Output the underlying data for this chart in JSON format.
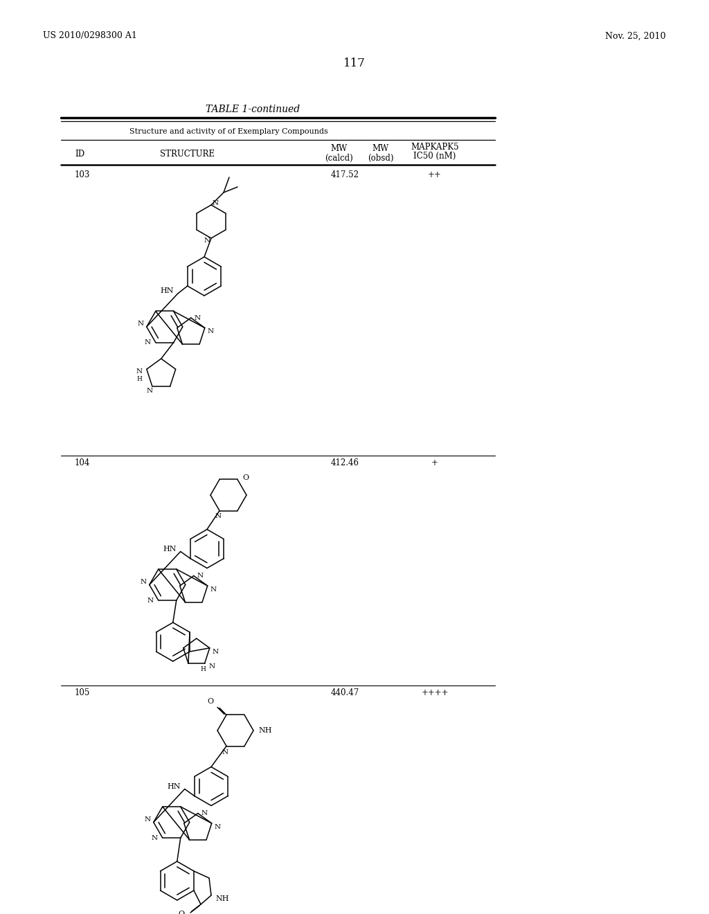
{
  "background_color": "#ffffff",
  "page_number": "117",
  "patent_left": "US 2010/0298300 A1",
  "patent_right": "Nov. 25, 2010",
  "table_title": "TABLE 1-continued",
  "table_subtitle": "Structure and activity of of Exemplary Compounds",
  "rows": [
    {
      "id": "103",
      "mw_calcd": "417.52",
      "mw_obsd": "",
      "activity": "++"
    },
    {
      "id": "104",
      "mw_calcd": "412.46",
      "mw_obsd": "",
      "activity": "+"
    },
    {
      "id": "105",
      "mw_calcd": "440.47",
      "mw_obsd": "",
      "activity": "++++"
    }
  ],
  "fig_width": 10.24,
  "fig_height": 13.2,
  "dpi": 100
}
